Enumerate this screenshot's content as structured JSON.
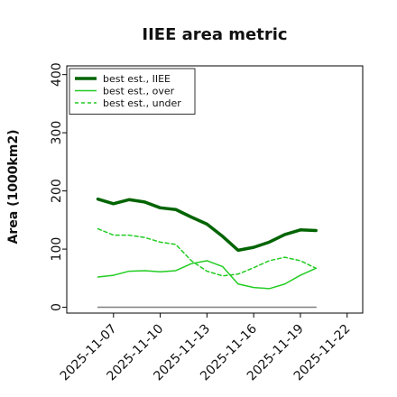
{
  "chart_data": {
    "type": "line",
    "title": "IIEE area metric",
    "xlabel": "",
    "ylabel": "Area (1000km2)",
    "ylim": [
      -10,
      415
    ],
    "xlim": [
      "2025-11-04",
      "2025-11-23"
    ],
    "yticks": [
      0,
      100,
      200,
      300,
      400
    ],
    "xticks": [
      "2025-11-07",
      "2025-11-10",
      "2025-11-13",
      "2025-11-16",
      "2025-11-19",
      "2025-11-22"
    ],
    "grid": false,
    "legend_position": "top-left",
    "series": [
      {
        "name": "best est., IIEE",
        "color": "#006400",
        "style": "solid",
        "width": "thick",
        "x": [
          "2025-11-06",
          "2025-11-07",
          "2025-11-08",
          "2025-11-09",
          "2025-11-10",
          "2025-11-11",
          "2025-11-12",
          "2025-11-13",
          "2025-11-14",
          "2025-11-15",
          "2025-11-16",
          "2025-11-17",
          "2025-11-18",
          "2025-11-19",
          "2025-11-20"
        ],
        "values": [
          186,
          178,
          185,
          181,
          171,
          168,
          155,
          143,
          122,
          98,
          103,
          112,
          125,
          133,
          132
        ]
      },
      {
        "name": "best est., over",
        "color": "#22cc22",
        "style": "solid",
        "width": "thin",
        "x": [
          "2025-11-06",
          "2025-11-07",
          "2025-11-08",
          "2025-11-09",
          "2025-11-10",
          "2025-11-11",
          "2025-11-12",
          "2025-11-13",
          "2025-11-14",
          "2025-11-15",
          "2025-11-16",
          "2025-11-17",
          "2025-11-18",
          "2025-11-19",
          "2025-11-20"
        ],
        "values": [
          52,
          55,
          62,
          63,
          61,
          63,
          75,
          80,
          70,
          40,
          34,
          32,
          40,
          55,
          67
        ]
      },
      {
        "name": "best est., under",
        "color": "#22cc22",
        "style": "dashed",
        "width": "thin",
        "x": [
          "2025-11-06",
          "2025-11-07",
          "2025-11-08",
          "2025-11-09",
          "2025-11-10",
          "2025-11-11",
          "2025-11-12",
          "2025-11-13",
          "2025-11-14",
          "2025-11-15",
          "2025-11-16",
          "2025-11-17",
          "2025-11-18",
          "2025-11-19",
          "2025-11-20"
        ],
        "values": [
          135,
          124,
          124,
          120,
          112,
          108,
          80,
          62,
          54,
          57,
          68,
          80,
          86,
          80,
          67
        ]
      },
      {
        "color": "#808080",
        "style": "solid",
        "width": "thin",
        "x": [
          "2025-11-06",
          "2025-11-20"
        ],
        "values": [
          0,
          0
        ]
      }
    ]
  }
}
